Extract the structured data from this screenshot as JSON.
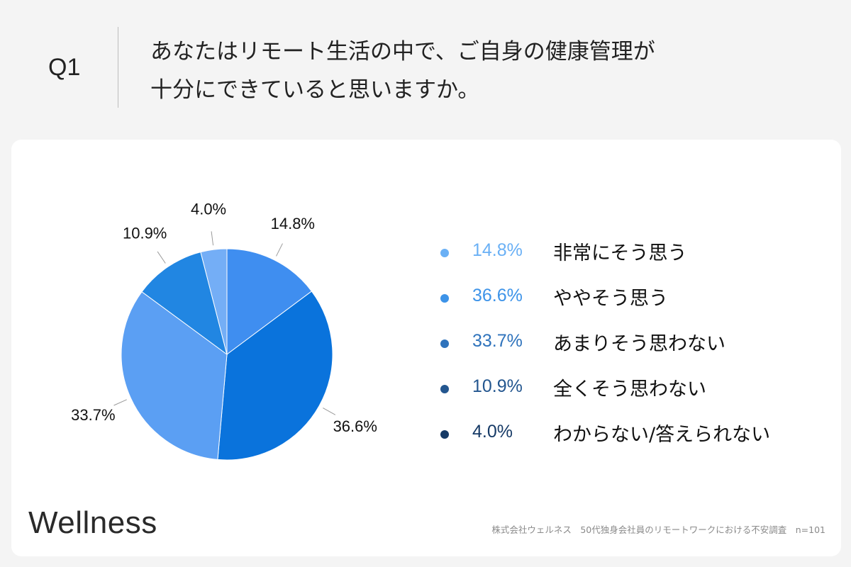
{
  "question": {
    "label": "Q1",
    "lines": [
      "あなたはリモート生活の中で、ご自身の健康管理が",
      "十分にできていると思いますか。"
    ]
  },
  "chart_data": {
    "type": "pie",
    "slices": [
      {
        "label": "非常にそう思う",
        "value": 14.8,
        "display": "14.8%",
        "color": "#3f8ef0",
        "legend_color": "#6ab0f5"
      },
      {
        "label": "ややそう思う",
        "value": 36.6,
        "display": "36.6%",
        "color": "#0a73dc",
        "legend_color": "#3d93e8"
      },
      {
        "label": "あまりそう思わない",
        "value": 33.7,
        "display": "33.7%",
        "color": "#5b9ff3",
        "legend_color": "#2f73bc"
      },
      {
        "label": "全くそう思わない",
        "value": 10.9,
        "display": "10.9%",
        "color": "#2186e2",
        "legend_color": "#23568f"
      },
      {
        "label": "わからない/答えられない",
        "value": 4.0,
        "display": "4.0%",
        "color": "#74aef6",
        "legend_color": "#163a66"
      }
    ]
  },
  "branding": {
    "logo": "Wellness",
    "footnote": "株式会社ウェルネス　50代独身会社員のリモートワークにおける不安調査　n=101"
  }
}
